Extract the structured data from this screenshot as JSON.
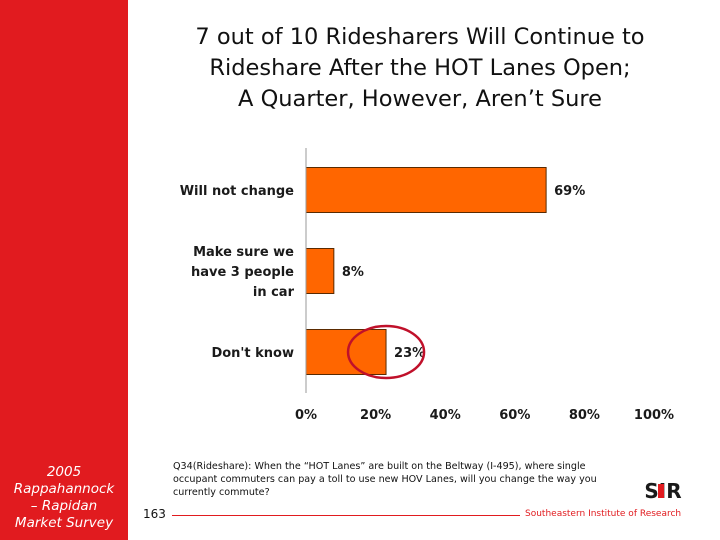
{
  "slide": {
    "title_lines": [
      "7 out of 10 Ridesharers Will Continue to",
      "Rideshare After the HOT Lanes Open;",
      "A Quarter, However, Aren’t Sure"
    ],
    "sidebar_lines": [
      "2005",
      "Rappahannock",
      "– Rapidan",
      "Market Survey"
    ],
    "footnote": "Q34(Rideshare): When the “HOT Lanes” are built on the Beltway (I-495), where single occupant commuters can pay a toll to use new HOV Lanes, will you change the way you currently commute?",
    "page_number": "163",
    "organization": "Southeastern Institute of Research",
    "logo_text": "SIR"
  },
  "colors": {
    "accent_red": "#e11b1f",
    "bar_orange": "#ff6600",
    "bar_outline": "#5a2a00",
    "highlight_ellipse": "#c0102a"
  },
  "chart_data": {
    "type": "bar",
    "orientation": "horizontal",
    "categories": [
      [
        "Will not change"
      ],
      [
        "Make sure we",
        "have 3 people",
        "in car"
      ],
      [
        "Don't know"
      ]
    ],
    "values": [
      69,
      8,
      23
    ],
    "data_labels": [
      "69%",
      "8%",
      "23%"
    ],
    "xlim": [
      0,
      100
    ],
    "xticks": [
      0,
      20,
      40,
      60,
      80,
      100
    ],
    "xtick_labels": [
      "0%",
      "20%",
      "40%",
      "60%",
      "80%",
      "100%"
    ],
    "highlighted_category_index": 2,
    "grid": false,
    "legend": "none"
  }
}
